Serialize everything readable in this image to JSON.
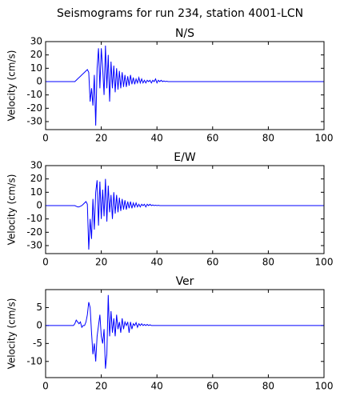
{
  "title": "Seismograms for run 234, station 4001-LCN",
  "chart_data": [
    {
      "type": "line",
      "title": "N/S",
      "y_label": "Velocity (cm/s)",
      "color": "#0000ff",
      "xlim": [
        0,
        100
      ],
      "xticks": [
        0,
        20,
        40,
        60,
        80,
        100
      ],
      "ylim": [
        -36,
        30
      ],
      "yticks": [
        -30,
        -20,
        -10,
        0,
        10,
        20,
        30
      ],
      "x": [
        0,
        5,
        10,
        10.5,
        11,
        11.5,
        12,
        12.5,
        13,
        13.5,
        14,
        14.5,
        15,
        15.5,
        16,
        16.5,
        17,
        17.5,
        18,
        18.5,
        19,
        19.5,
        20,
        20.5,
        21,
        21.5,
        22,
        22.5,
        23,
        23.5,
        24,
        24.5,
        25,
        25.5,
        26,
        26.5,
        27,
        27.5,
        28,
        28.5,
        29,
        29.5,
        30,
        30.5,
        31,
        31.5,
        32,
        32.5,
        33,
        33.5,
        34,
        34.5,
        35,
        35.5,
        36,
        36.5,
        37,
        37.5,
        38,
        38.5,
        39,
        39.5,
        40,
        40.5,
        41,
        41.5,
        42,
        42.5,
        43,
        43.5,
        44,
        44.5,
        45,
        50,
        60,
        80,
        100
      ],
      "values": [
        0,
        0,
        0,
        0,
        1,
        2,
        3,
        4,
        5,
        6,
        7,
        8,
        9,
        7,
        -15,
        -5,
        -18,
        5,
        -33,
        10,
        25,
        -5,
        25,
        10,
        -10,
        27,
        -5,
        20,
        -15,
        15,
        -5,
        12,
        -8,
        10,
        -6,
        8,
        -5,
        7,
        -4,
        5,
        -4,
        4,
        -3,
        5,
        -2,
        3,
        -2,
        2,
        -1,
        3,
        -1,
        2,
        -1,
        1,
        -1,
        1,
        0,
        1,
        -1,
        1,
        0,
        2,
        -1,
        1,
        0,
        1,
        0,
        0.5,
        0,
        0.3,
        0,
        0,
        0,
        0,
        0,
        0,
        0
      ]
    },
    {
      "type": "line",
      "title": "E/W",
      "y_label": "Velocity (cm/s)",
      "color": "#0000ff",
      "xlim": [
        0,
        100
      ],
      "xticks": [
        0,
        20,
        40,
        60,
        80,
        100
      ],
      "ylim": [
        -36,
        30
      ],
      "yticks": [
        -30,
        -20,
        -10,
        0,
        10,
        20,
        30
      ],
      "x": [
        0,
        5,
        10,
        10.5,
        11,
        11.5,
        12,
        12.5,
        13,
        13.5,
        14,
        14.5,
        15,
        15.5,
        16,
        16.5,
        17,
        17.5,
        18,
        18.5,
        19,
        19.5,
        20,
        20.5,
        21,
        21.5,
        22,
        22.5,
        23,
        23.5,
        24,
        24.5,
        25,
        25.5,
        26,
        26.5,
        27,
        27.5,
        28,
        28.5,
        29,
        29.5,
        30,
        30.5,
        31,
        31.5,
        32,
        32.5,
        33,
        33.5,
        34,
        34.5,
        35,
        35.5,
        36,
        36.5,
        37,
        37.5,
        38,
        38.5,
        39,
        39.5,
        40,
        40.5,
        41,
        41.5,
        42,
        42.5,
        43,
        43.5,
        44,
        44.5,
        45,
        50,
        60,
        80,
        100
      ],
      "values": [
        0,
        0,
        0,
        0,
        -0.5,
        -1,
        -1,
        -0.5,
        0,
        1,
        2,
        3,
        1,
        -33,
        -10,
        -25,
        5,
        -18,
        10,
        19,
        -15,
        18,
        -10,
        12,
        -8,
        20,
        -12,
        15,
        -5,
        8,
        -10,
        10,
        -6,
        8,
        -5,
        6,
        -4,
        5,
        -3,
        4,
        -3,
        3,
        -2,
        3,
        -2,
        2,
        -1,
        2,
        -1,
        1,
        -1,
        1,
        0,
        1,
        -1,
        1,
        0,
        1,
        0,
        0.5,
        0,
        0.3,
        0,
        0.2,
        0,
        0,
        0,
        0,
        0,
        0,
        0,
        0,
        0,
        0,
        0,
        0,
        0
      ]
    },
    {
      "type": "line",
      "title": "Ver",
      "y_label": "Velocity (cm/s)",
      "color": "#0000ff",
      "xlim": [
        0,
        100
      ],
      "xticks": [
        0,
        20,
        40,
        60,
        80,
        100
      ],
      "ylim": [
        -14.5,
        10
      ],
      "yticks": [
        -10,
        -5,
        0,
        5
      ],
      "x": [
        0,
        5,
        10,
        10.5,
        11,
        11.5,
        12,
        12.5,
        13,
        13.5,
        14,
        14.5,
        15,
        15.5,
        16,
        16.5,
        17,
        17.5,
        18,
        18.5,
        19,
        19.5,
        20,
        20.5,
        21,
        21.5,
        22,
        22.5,
        23,
        23.5,
        24,
        24.5,
        25,
        25.5,
        26,
        26.5,
        27,
        27.5,
        28,
        28.5,
        29,
        29.5,
        30,
        30.5,
        31,
        31.5,
        32,
        32.5,
        33,
        33.5,
        34,
        34.5,
        35,
        35.5,
        36,
        36.5,
        37,
        37.5,
        38,
        38.5,
        39,
        39.5,
        40,
        40.5,
        41,
        41.5,
        42,
        42.5,
        43,
        43.5,
        44,
        44.5,
        45,
        50,
        60,
        80,
        100
      ],
      "values": [
        0,
        0,
        0,
        0.5,
        1.5,
        1,
        0.5,
        1,
        -0.5,
        0,
        0,
        1,
        3,
        6.5,
        5,
        -2,
        -8,
        -5,
        -10,
        -3,
        0,
        3,
        -3,
        -5,
        -1,
        -12,
        -8,
        8.5,
        -3,
        4,
        -2,
        2,
        -3,
        3,
        -1,
        1,
        -2,
        2,
        -1,
        1,
        0,
        1,
        -2,
        1,
        -1,
        0.5,
        0,
        0.8,
        -0.5,
        0.5,
        0,
        0.5,
        0,
        0.3,
        0,
        0.3,
        0,
        0.2,
        0,
        0,
        0,
        0,
        0,
        0,
        0,
        0,
        0,
        0,
        0,
        0,
        0,
        0,
        0,
        0,
        0,
        0,
        0
      ]
    }
  ]
}
